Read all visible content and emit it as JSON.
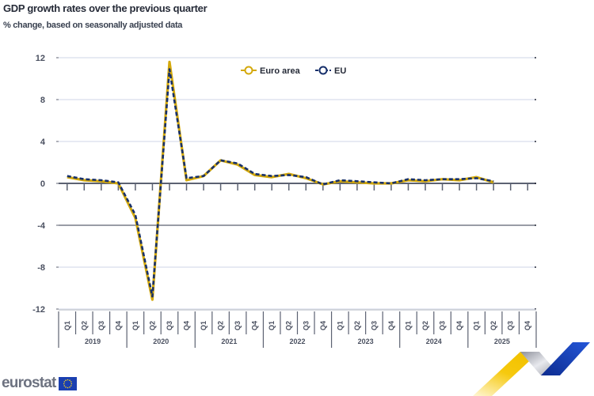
{
  "header": {
    "title": "GDP growth rates over the previous quarter",
    "subtitle": "% change, based on seasonally adjusted data"
  },
  "legend": {
    "items": [
      {
        "label": "Euro area",
        "color": "#d4a90c",
        "style": "solid"
      },
      {
        "label": "EU",
        "color": "#17306b",
        "style": "dashed"
      }
    ]
  },
  "branding": {
    "logo_text": "eurostat",
    "flag_color": "#1a3fb0"
  },
  "chart_data": {
    "type": "line",
    "title": "GDP growth rates over the previous quarter",
    "subtitle": "% change, based on seasonally adjusted data",
    "xlabel": "",
    "ylabel": "",
    "ylim": [
      -12,
      12
    ],
    "yticks": [
      12,
      8,
      4,
      0,
      -4,
      -8,
      -12
    ],
    "grid": true,
    "legend_position": "top-center",
    "years": [
      "2019",
      "2020",
      "2021",
      "2022",
      "2023",
      "2024",
      "2025"
    ],
    "quarters": [
      "Q1",
      "Q2",
      "Q3",
      "Q4"
    ],
    "x": [
      "2019Q1",
      "2019Q2",
      "2019Q3",
      "2019Q4",
      "2020Q1",
      "2020Q2",
      "2020Q3",
      "2020Q4",
      "2021Q1",
      "2021Q2",
      "2021Q3",
      "2021Q4",
      "2022Q1",
      "2022Q2",
      "2022Q3",
      "2022Q4",
      "2023Q1",
      "2023Q2",
      "2023Q3",
      "2023Q4",
      "2024Q1",
      "2024Q2",
      "2024Q3",
      "2024Q4",
      "2025Q1",
      "2025Q2",
      "2025Q3",
      "2025Q4"
    ],
    "series": [
      {
        "name": "Euro area",
        "color": "#d4a90c",
        "values": [
          0.6,
          0.3,
          0.2,
          0.0,
          -3.3,
          -11.1,
          11.6,
          0.3,
          0.7,
          2.2,
          1.8,
          0.8,
          0.6,
          0.9,
          0.5,
          -0.1,
          0.2,
          0.1,
          0.0,
          0.0,
          0.3,
          0.2,
          0.4,
          0.3,
          0.6,
          0.1,
          null,
          null
        ]
      },
      {
        "name": "EU",
        "color": "#17306b",
        "values": [
          0.7,
          0.4,
          0.3,
          0.1,
          -3.0,
          -10.8,
          10.9,
          0.5,
          0.7,
          2.2,
          1.9,
          0.9,
          0.7,
          0.8,
          0.6,
          -0.1,
          0.3,
          0.2,
          0.1,
          0.0,
          0.4,
          0.3,
          0.4,
          0.4,
          0.5,
          0.2,
          null,
          null
        ]
      }
    ]
  }
}
